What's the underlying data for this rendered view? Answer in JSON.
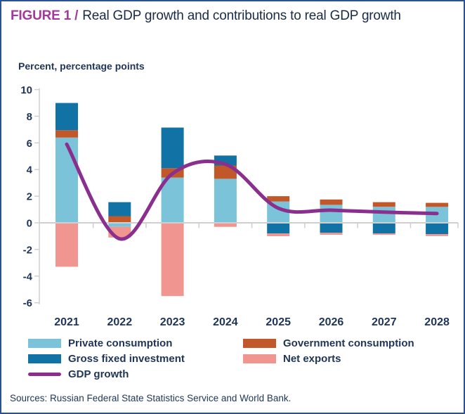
{
  "title": {
    "prefix": "FIGURE 1 /",
    "text": "Real GDP growth and contributions to real GDP growth"
  },
  "axis_note": "Percent, percentage points",
  "sources_line": "Sources: Russian Federal State Statistics Service and World Bank.",
  "colors": {
    "private_consumption": "#7AC3D9",
    "government_consumption": "#C2582A",
    "gross_fixed_investment": "#1173A5",
    "net_exports": "#F0958F",
    "gdp_growth": "#8B2F8F",
    "axis": "#CFCFCF",
    "text_navy": "#1F3557",
    "title_purple": "#A13A9B",
    "frame_border": "#2A5291"
  },
  "legend": {
    "items": [
      {
        "label": "Private consumption",
        "key": "private_consumption",
        "type": "box"
      },
      {
        "label": "Government consumption",
        "key": "government_consumption",
        "type": "box"
      },
      {
        "label": "Gross fixed investment",
        "key": "gross_fixed_investment",
        "type": "box"
      },
      {
        "label": "Net exports",
        "key": "net_exports",
        "type": "box"
      },
      {
        "label": "GDP growth",
        "key": "gdp_growth",
        "type": "line"
      }
    ]
  },
  "chart_data": {
    "type": "bar",
    "subtype": "stacked-bar-with-smoothed-line",
    "title": "Real GDP growth and contributions to real GDP growth",
    "ylabel": "Percent, percentage points",
    "xlabel": "",
    "categories": [
      "2021",
      "2022",
      "2023",
      "2024",
      "2025",
      "2026",
      "2027",
      "2028"
    ],
    "series": [
      {
        "name": "Private consumption",
        "color": "#7AC3D9",
        "values": [
          6.4,
          -0.3,
          3.4,
          3.3,
          1.6,
          1.35,
          1.2,
          1.2
        ]
      },
      {
        "name": "Government consumption",
        "color": "#C2582A",
        "values": [
          0.55,
          0.5,
          0.7,
          1.0,
          0.4,
          0.4,
          0.35,
          0.3
        ]
      },
      {
        "name": "Gross fixed investment",
        "color": "#1173A5",
        "values": [
          2.05,
          1.05,
          3.05,
          0.75,
          -0.8,
          -0.75,
          -0.8,
          -0.85
        ]
      },
      {
        "name": "Net exports",
        "color": "#F0958F",
        "values": [
          -3.3,
          -0.8,
          -5.5,
          -0.3,
          -0.2,
          -0.15,
          -0.1,
          -0.15
        ]
      }
    ],
    "line_series": {
      "name": "GDP growth",
      "color": "#8B2F8F",
      "values": [
        5.9,
        -1.2,
        3.7,
        4.4,
        1.1,
        0.95,
        0.8,
        0.7
      ]
    },
    "ylim": [
      -6,
      10
    ],
    "yticks": [
      10,
      8,
      6,
      4,
      2,
      0,
      -2,
      -4,
      -6
    ],
    "grid": false,
    "legend_position": "bottom-left"
  }
}
